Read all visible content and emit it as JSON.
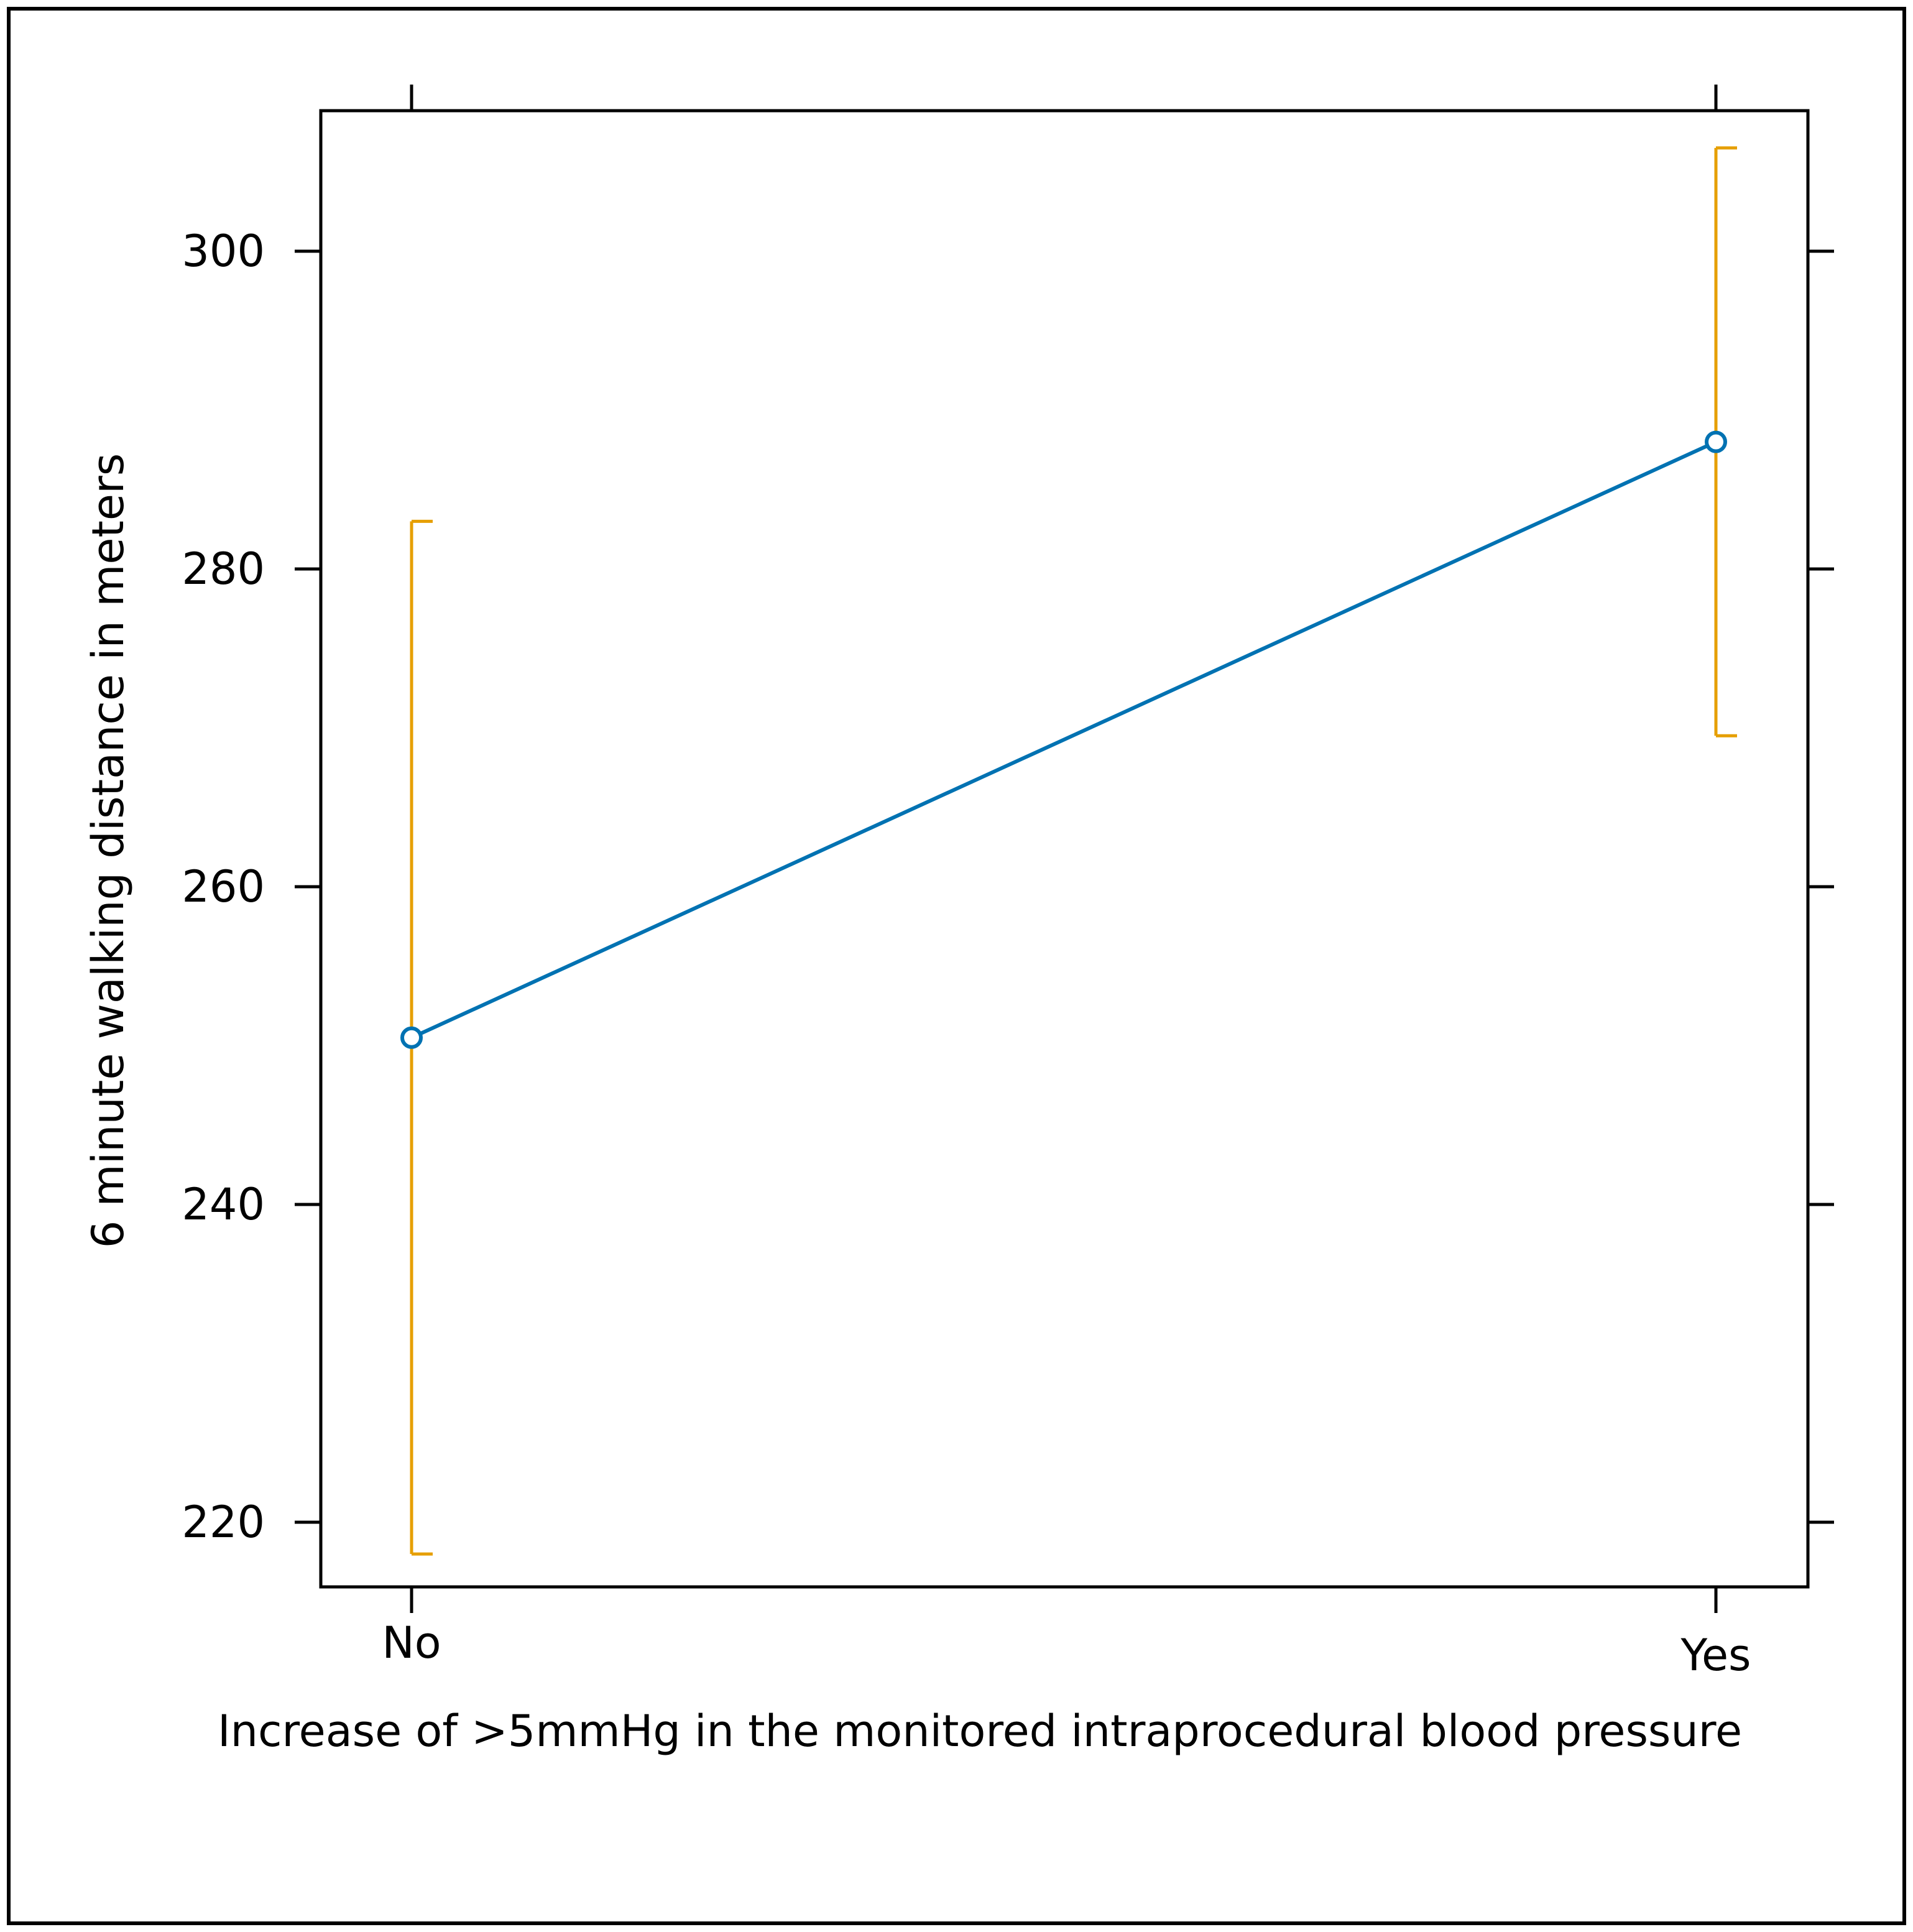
{
  "chart_data": {
    "type": "line",
    "title": "",
    "xlabel": "Increase of >5mmHg in the monitored intraprocedural blood pressure",
    "ylabel": "6 minute walking distance in meters",
    "categories": [
      "No",
      "Yes"
    ],
    "series": [
      {
        "values": [
          250.5,
          288.0
        ],
        "ci_lower": [
          218.0,
          269.5
        ],
        "ci_upper": [
          283.0,
          306.5
        ],
        "color": "#0072b2",
        "errorbar_color": "#e69f00",
        "marker": "open-circle"
      }
    ],
    "yticks": [
      220,
      240,
      260,
      280,
      300
    ],
    "ytick_labels": [
      "220",
      "240",
      "260",
      "280",
      "300"
    ],
    "ylim": [
      216,
      309
    ],
    "grid": false,
    "legend": "none"
  }
}
